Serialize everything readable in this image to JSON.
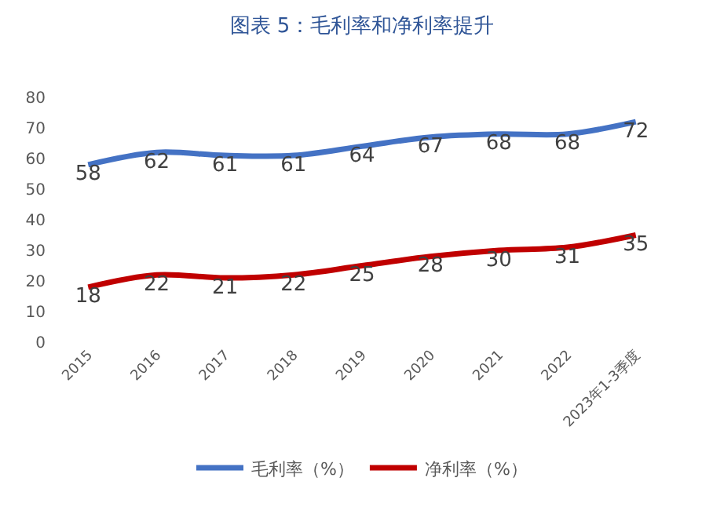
{
  "chart_data": {
    "type": "line",
    "title": "图表 5：毛利率和净利率提升",
    "categories": [
      "2015",
      "2016",
      "2017",
      "2018",
      "2019",
      "2020",
      "2021",
      "2022",
      "2023年1-3季度"
    ],
    "series": [
      {
        "name": "毛利率（%）",
        "color": "#4472c4",
        "values": [
          58,
          62,
          61,
          61,
          64,
          67,
          68,
          68,
          72
        ]
      },
      {
        "name": "净利率（%）",
        "color": "#c00000",
        "values": [
          18,
          22,
          21,
          22,
          25,
          28,
          30,
          31,
          35
        ]
      }
    ],
    "ylim": [
      0,
      80
    ],
    "yticks": [
      0,
      10,
      20,
      30,
      40,
      50,
      60,
      70,
      80
    ],
    "legend": "bottom",
    "data_labels": true,
    "marker": "none",
    "line_style": "solid"
  }
}
